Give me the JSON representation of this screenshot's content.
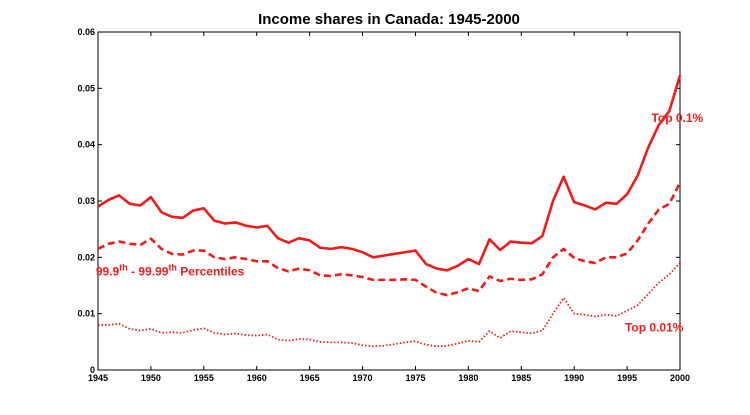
{
  "chart_data": {
    "type": "line",
    "title": "Income shares in Canada: 1945-2000",
    "xlabel": "",
    "ylabel": "",
    "xlim": [
      1945,
      2000
    ],
    "ylim": [
      0,
      0.06
    ],
    "grid": false,
    "x_ticks": [
      1945,
      1950,
      1955,
      1960,
      1965,
      1970,
      1975,
      1980,
      1985,
      1990,
      1995,
      2000
    ],
    "x_tick_labels": [
      "1945",
      "1950",
      "1955",
      "1960",
      "1965",
      "1970",
      "1975",
      "1980",
      "1985",
      "1990",
      "1995",
      "2000"
    ],
    "y_ticks": [
      0,
      0.01,
      0.02,
      0.03,
      0.04,
      0.05,
      0.06
    ],
    "y_tick_labels": [
      "0",
      "0.01",
      "0.02",
      "0.03",
      "0.04",
      "0.05",
      "0.06"
    ],
    "x": [
      1945,
      1946,
      1947,
      1948,
      1949,
      1950,
      1951,
      1952,
      1953,
      1954,
      1955,
      1956,
      1957,
      1958,
      1959,
      1960,
      1961,
      1962,
      1963,
      1964,
      1965,
      1966,
      1967,
      1968,
      1969,
      1970,
      1971,
      1972,
      1973,
      1974,
      1975,
      1976,
      1977,
      1978,
      1979,
      1980,
      1981,
      1982,
      1983,
      1984,
      1985,
      1986,
      1987,
      1988,
      1989,
      1990,
      1991,
      1992,
      1993,
      1994,
      1995,
      1996,
      1997,
      1998,
      1999,
      2000
    ],
    "series": [
      {
        "name": "Top 0.1%",
        "style": "solid",
        "color": "#ee1c1c",
        "values": [
          0.029,
          0.0302,
          0.031,
          0.0295,
          0.0292,
          0.0307,
          0.028,
          0.0272,
          0.027,
          0.0283,
          0.0287,
          0.0265,
          0.026,
          0.0262,
          0.0256,
          0.0253,
          0.0256,
          0.0234,
          0.0226,
          0.0234,
          0.023,
          0.0217,
          0.0215,
          0.0218,
          0.0215,
          0.0209,
          0.02,
          0.0203,
          0.0206,
          0.0209,
          0.0212,
          0.0188,
          0.018,
          0.0177,
          0.0185,
          0.0197,
          0.0188,
          0.0232,
          0.0213,
          0.0228,
          0.0226,
          0.0225,
          0.0238,
          0.03,
          0.0343,
          0.0298,
          0.0292,
          0.0285,
          0.0297,
          0.0295,
          0.0312,
          0.0345,
          0.0395,
          0.0435,
          0.046,
          0.0523
        ]
      },
      {
        "name": "99.9th - 99.99th Percentiles",
        "style": "dashed",
        "color": "#ee1c1c",
        "values": [
          0.0215,
          0.0224,
          0.0228,
          0.0224,
          0.0222,
          0.0233,
          0.0215,
          0.0206,
          0.0205,
          0.0212,
          0.0212,
          0.02,
          0.0197,
          0.02,
          0.0197,
          0.0193,
          0.0193,
          0.0181,
          0.0175,
          0.018,
          0.0177,
          0.0168,
          0.0167,
          0.017,
          0.0168,
          0.0165,
          0.016,
          0.016,
          0.016,
          0.0161,
          0.016,
          0.0148,
          0.0137,
          0.0133,
          0.0138,
          0.0145,
          0.014,
          0.0166,
          0.0158,
          0.0162,
          0.016,
          0.0161,
          0.017,
          0.02,
          0.0215,
          0.0199,
          0.0193,
          0.019,
          0.02,
          0.02,
          0.0207,
          0.023,
          0.026,
          0.0285,
          0.0295,
          0.0333
        ]
      },
      {
        "name": "Top 0.01%",
        "style": "dotted",
        "color": "#ee1c1c",
        "values": [
          0.008,
          0.008,
          0.0082,
          0.0073,
          0.007,
          0.0073,
          0.0066,
          0.0067,
          0.0066,
          0.0071,
          0.0074,
          0.0066,
          0.0063,
          0.0065,
          0.0062,
          0.0061,
          0.0063,
          0.0054,
          0.0052,
          0.0055,
          0.0054,
          0.005,
          0.0049,
          0.0049,
          0.0048,
          0.0044,
          0.0042,
          0.0043,
          0.0046,
          0.0049,
          0.0051,
          0.0045,
          0.0042,
          0.0043,
          0.0047,
          0.0052,
          0.005,
          0.0069,
          0.0057,
          0.0069,
          0.0067,
          0.0065,
          0.007,
          0.01,
          0.0128,
          0.01,
          0.0098,
          0.0095,
          0.0098,
          0.0096,
          0.0105,
          0.0115,
          0.0135,
          0.0155,
          0.017,
          0.019
        ]
      }
    ],
    "annotations": [
      {
        "name": "top-0-1",
        "text": "Top 0.1%",
        "x": 1997.3,
        "y": 0.044
      },
      {
        "name": "percentiles",
        "text_parts": [
          "99.9",
          "th",
          " - 99.99",
          "th",
          " Percentiles"
        ],
        "x": 1944.8,
        "y": 0.0168
      },
      {
        "name": "top-0-01",
        "text": "Top 0.01%",
        "x": 1994.8,
        "y": 0.0068
      }
    ]
  }
}
